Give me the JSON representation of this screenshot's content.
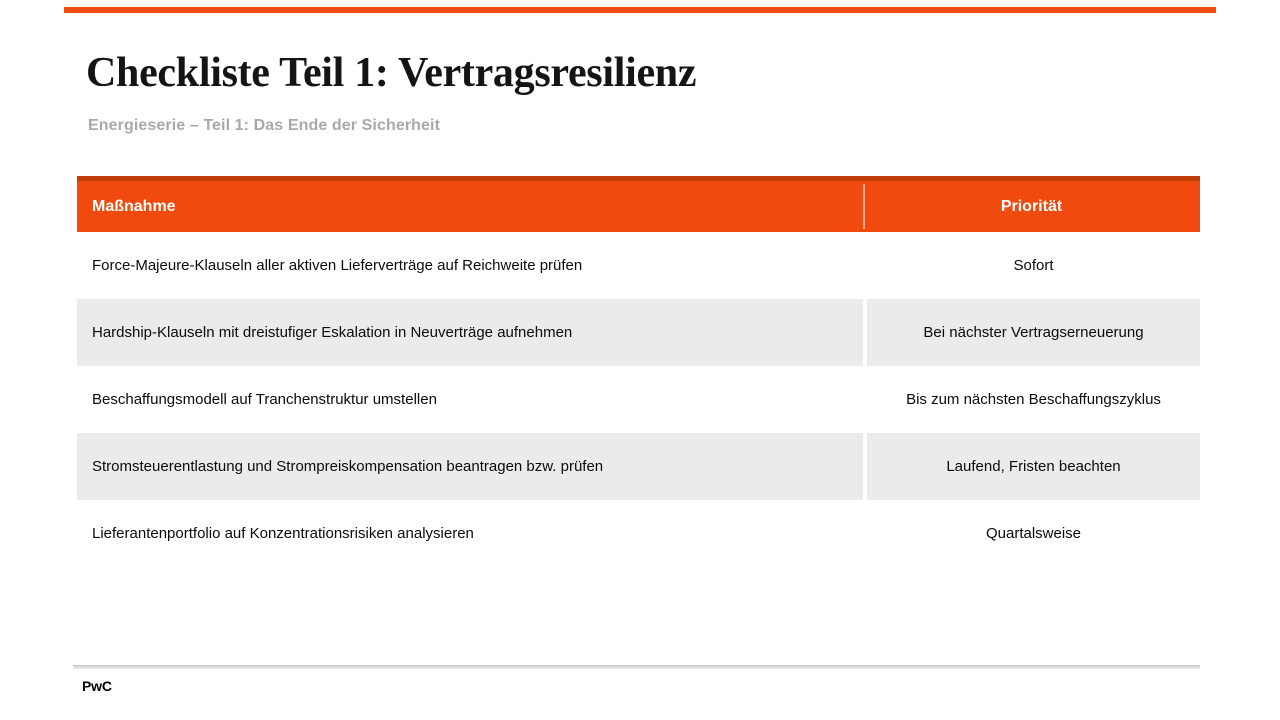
{
  "slide": {
    "title": "Checkliste Teil 1: Vertragsresilienz",
    "subtitle": "Energieserie – Teil 1: Das Ende der Sicherheit",
    "footer_logo": "PwC"
  },
  "table": {
    "columns": [
      {
        "label": "Maßnahme"
      },
      {
        "label": "Priorität"
      }
    ],
    "rows": [
      {
        "massnahme": "Force-Majeure-Klauseln aller aktiven Lieferverträge auf Reichweite prüfen",
        "prioritaet": "Sofort"
      },
      {
        "massnahme": "Hardship-Klauseln mit dreistufiger Eskalation in Neuverträge aufnehmen",
        "prioritaet": "Bei nächster Vertragserneuerung"
      },
      {
        "massnahme": "Beschaffungsmodell auf Tranchenstruktur umstellen",
        "prioritaet": "Bis zum nächsten Beschaffungszyklus"
      },
      {
        "massnahme": "Stromsteuerentlastung und Strompreiskompensation beantragen bzw. prüfen",
        "prioritaet": "Laufend, Fristen beachten"
      },
      {
        "massnahme": "Lieferantenportfolio auf Konzentrationsrisiken analysieren",
        "prioritaet": "Quartalsweise"
      }
    ]
  },
  "colors": {
    "accent_orange": "#F04A0E",
    "accent_orange_dark": "#BE3F08",
    "row_alt_gray": "#EBEBEB",
    "subtitle_gray": "#A7A9AC"
  }
}
